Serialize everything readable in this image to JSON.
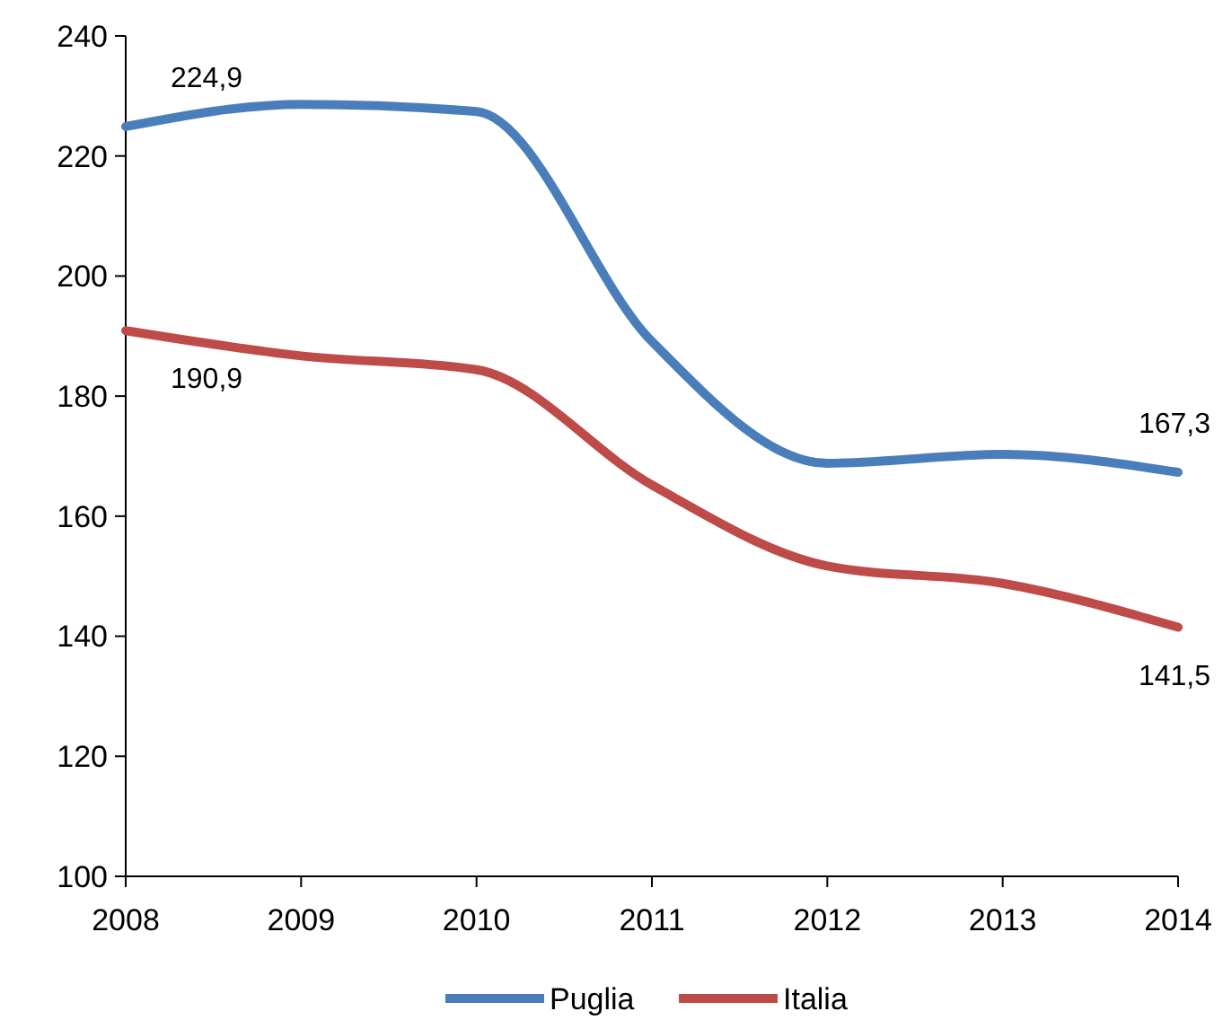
{
  "chart_data": {
    "type": "line",
    "x": [
      2008,
      2009,
      2010,
      2011,
      2012,
      2013,
      2014
    ],
    "xlim": [
      2008,
      2014
    ],
    "xticks": [
      2008,
      2009,
      2010,
      2011,
      2012,
      2013,
      2014
    ],
    "ylim": [
      100,
      240
    ],
    "yticks": [
      100,
      120,
      140,
      160,
      180,
      200,
      220,
      240
    ],
    "grid": false,
    "legend": "bottom",
    "marker": "none",
    "line_style": "solid",
    "series": [
      {
        "name": "Puglia",
        "color": "#4a7ebb",
        "values": [
          224.9,
          228.6,
          227.4,
          189.1,
          168.8,
          170.3,
          167.3
        ],
        "value_labels": [
          "224,9",
          null,
          null,
          null,
          null,
          null,
          "167,3"
        ]
      },
      {
        "name": "Italia",
        "color": "#be4b48",
        "values": [
          190.9,
          186.7,
          184.4,
          165.2,
          151.7,
          148.8,
          141.5
        ],
        "value_labels": [
          "190,9",
          null,
          null,
          null,
          null,
          null,
          "141,5"
        ]
      }
    ]
  }
}
